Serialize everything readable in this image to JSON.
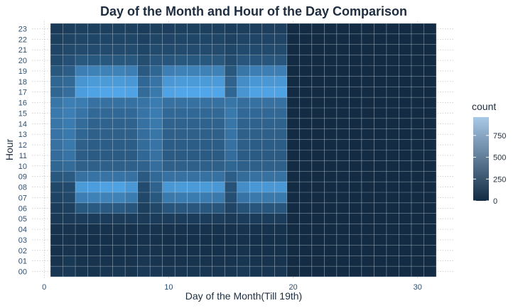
{
  "chart_data": {
    "type": "heatmap",
    "title": "Day of the Month and Hour of the Day Comparison",
    "xlabel": "Day of the Month(Till 19th)",
    "ylabel": "Hour",
    "xlim": [
      0,
      31
    ],
    "x_ticks": [
      "0",
      "10",
      "20",
      "30"
    ],
    "x_tick_values": [
      0,
      10,
      20,
      30
    ],
    "hours": [
      "00",
      "01",
      "02",
      "03",
      "04",
      "05",
      "06",
      "07",
      "08",
      "09",
      "10",
      "11",
      "12",
      "13",
      "14",
      "15",
      "16",
      "17",
      "18",
      "19",
      "20",
      "21",
      "22",
      "23"
    ],
    "days": [
      1,
      2,
      3,
      4,
      5,
      6,
      7,
      8,
      9,
      10,
      11,
      12,
      13,
      14,
      15,
      16,
      17,
      18,
      19,
      20,
      21,
      22,
      23,
      24,
      25,
      26,
      27,
      28,
      29,
      30,
      31
    ],
    "data_days": [
      1,
      2,
      3,
      4,
      5,
      6,
      7,
      8,
      9,
      10,
      11,
      12,
      13,
      14,
      15,
      16,
      17,
      18,
      19
    ],
    "values_by_hour": [
      [
        80,
        100,
        70,
        70,
        75,
        80,
        70,
        100,
        95,
        75,
        75,
        75,
        75,
        75,
        75,
        100,
        75,
        75,
        75
      ],
      [
        60,
        90,
        55,
        55,
        55,
        60,
        55,
        80,
        70,
        55,
        55,
        55,
        55,
        55,
        60,
        75,
        55,
        55,
        55
      ],
      [
        45,
        60,
        40,
        40,
        40,
        45,
        40,
        60,
        55,
        40,
        40,
        40,
        40,
        40,
        45,
        55,
        40,
        40,
        40
      ],
      [
        40,
        50,
        35,
        35,
        35,
        40,
        35,
        50,
        45,
        35,
        35,
        35,
        35,
        35,
        35,
        45,
        35,
        35,
        35
      ],
      [
        50,
        60,
        50,
        50,
        50,
        55,
        50,
        60,
        55,
        50,
        50,
        50,
        50,
        50,
        50,
        55,
        50,
        50,
        50
      ],
      [
        100,
        110,
        120,
        120,
        120,
        125,
        120,
        115,
        120,
        120,
        120,
        120,
        120,
        120,
        110,
        120,
        120,
        120,
        120
      ],
      [
        120,
        150,
        320,
        330,
        330,
        330,
        300,
        150,
        200,
        300,
        310,
        310,
        310,
        300,
        180,
        280,
        300,
        300,
        300
      ],
      [
        170,
        200,
        600,
        620,
        620,
        620,
        580,
        200,
        320,
        560,
        580,
        580,
        580,
        560,
        250,
        520,
        560,
        560,
        560
      ],
      [
        200,
        220,
        800,
        820,
        850,
        850,
        780,
        230,
        400,
        780,
        800,
        800,
        800,
        780,
        280,
        700,
        780,
        780,
        780
      ],
      [
        320,
        340,
        500,
        520,
        520,
        520,
        500,
        330,
        450,
        500,
        500,
        500,
        500,
        500,
        360,
        460,
        500,
        500,
        500
      ],
      [
        420,
        460,
        380,
        380,
        380,
        380,
        380,
        400,
        480,
        380,
        380,
        380,
        380,
        380,
        420,
        380,
        380,
        380,
        380
      ],
      [
        470,
        520,
        360,
        340,
        340,
        340,
        340,
        430,
        500,
        340,
        340,
        340,
        340,
        340,
        470,
        350,
        340,
        340,
        340
      ],
      [
        500,
        560,
        380,
        360,
        360,
        360,
        360,
        460,
        520,
        360,
        360,
        360,
        360,
        360,
        500,
        370,
        360,
        360,
        360
      ],
      [
        520,
        560,
        420,
        380,
        380,
        380,
        380,
        480,
        540,
        380,
        380,
        380,
        380,
        380,
        520,
        380,
        380,
        380,
        380
      ],
      [
        540,
        580,
        460,
        400,
        400,
        400,
        400,
        500,
        560,
        400,
        400,
        400,
        400,
        400,
        540,
        400,
        400,
        400,
        400
      ],
      [
        560,
        600,
        520,
        440,
        440,
        440,
        440,
        520,
        580,
        440,
        440,
        440,
        440,
        440,
        560,
        440,
        440,
        440,
        440
      ],
      [
        540,
        600,
        580,
        500,
        500,
        500,
        500,
        520,
        580,
        500,
        500,
        500,
        500,
        500,
        540,
        480,
        500,
        500,
        500
      ],
      [
        420,
        480,
        820,
        860,
        880,
        880,
        860,
        460,
        560,
        860,
        880,
        880,
        880,
        880,
        420,
        760,
        860,
        860,
        860
      ],
      [
        420,
        450,
        760,
        800,
        800,
        800,
        780,
        430,
        520,
        780,
        800,
        800,
        800,
        800,
        400,
        700,
        780,
        780,
        780
      ],
      [
        320,
        360,
        600,
        620,
        620,
        620,
        600,
        330,
        420,
        600,
        620,
        620,
        620,
        620,
        320,
        540,
        600,
        600,
        600
      ],
      [
        220,
        260,
        320,
        320,
        320,
        320,
        320,
        240,
        300,
        300,
        320,
        320,
        320,
        320,
        230,
        300,
        300,
        300,
        300
      ],
      [
        180,
        210,
        230,
        230,
        230,
        230,
        230,
        190,
        230,
        220,
        230,
        230,
        230,
        230,
        190,
        220,
        220,
        220,
        220
      ],
      [
        150,
        170,
        190,
        190,
        190,
        190,
        190,
        160,
        190,
        180,
        190,
        190,
        190,
        190,
        160,
        180,
        180,
        180,
        180
      ],
      [
        110,
        130,
        150,
        150,
        150,
        150,
        150,
        120,
        150,
        140,
        150,
        150,
        150,
        150,
        120,
        140,
        140,
        140,
        140
      ]
    ],
    "empty_value": 0,
    "legend": {
      "title": "count",
      "placement": "right",
      "ticks": [
        "0",
        "250",
        "500",
        "750"
      ],
      "tick_values": [
        0,
        250,
        500,
        750
      ],
      "min": 0,
      "max": 960,
      "color_low": "#132b43",
      "color_high": "#56b1f7"
    }
  }
}
